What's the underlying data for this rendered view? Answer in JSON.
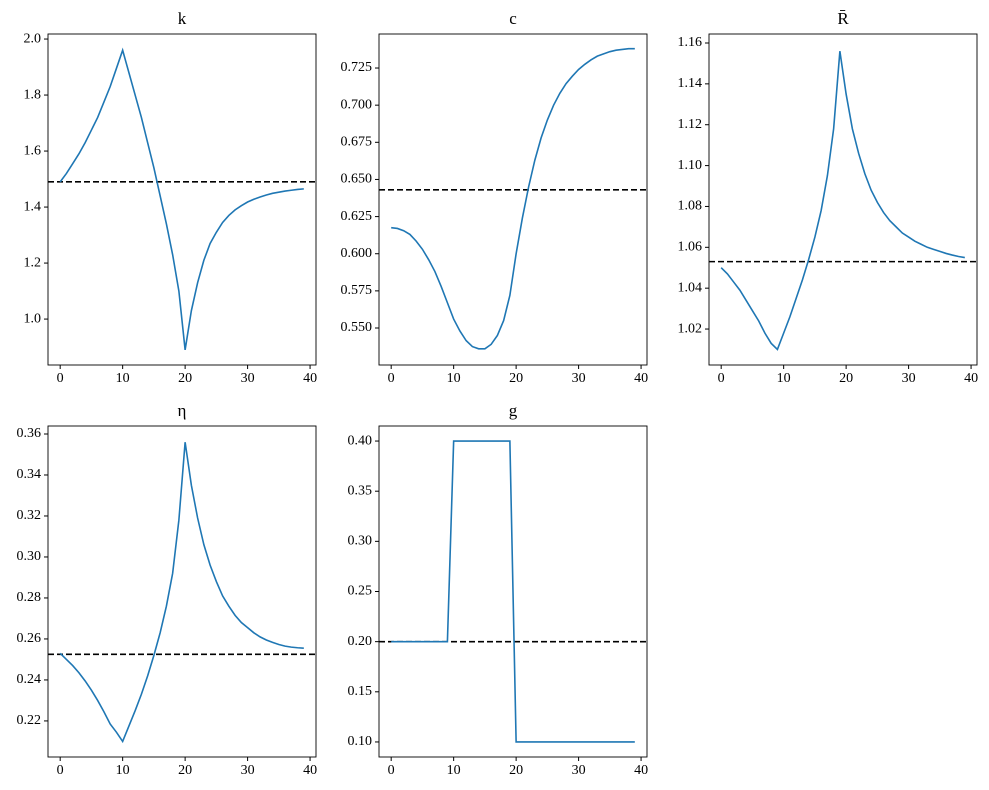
{
  "chart_data": [
    {
      "type": "line",
      "title": "k",
      "x": [
        0,
        1,
        2,
        3,
        4,
        5,
        6,
        7,
        8,
        9,
        10,
        11,
        12,
        13,
        14,
        15,
        16,
        17,
        18,
        19,
        20,
        21,
        22,
        23,
        24,
        25,
        26,
        27,
        28,
        29,
        30,
        31,
        32,
        33,
        34,
        35,
        36,
        37,
        38,
        39
      ],
      "values": [
        1.49,
        1.52,
        1.555,
        1.59,
        1.63,
        1.675,
        1.72,
        1.775,
        1.83,
        1.895,
        1.96,
        1.88,
        1.8,
        1.72,
        1.63,
        1.54,
        1.44,
        1.34,
        1.23,
        1.1,
        0.89,
        1.03,
        1.13,
        1.21,
        1.27,
        1.31,
        1.345,
        1.37,
        1.39,
        1.405,
        1.418,
        1.428,
        1.436,
        1.443,
        1.449,
        1.453,
        1.457,
        1.46,
        1.463,
        1.465
      ],
      "color": "#1f77b4",
      "hline": {
        "value": 1.49,
        "color": "#000000",
        "style": "dashed"
      },
      "xlim": [
        -1.95,
        40.95
      ],
      "xticks": [
        0,
        10,
        20,
        30,
        40
      ],
      "ylim": [
        0.836,
        2.018
      ],
      "yticks": [
        {
          "value": 1.0,
          "label": "1.0"
        },
        1.2,
        1.4,
        1.6,
        1.8,
        {
          "value": 2.0,
          "label": "2.0"
        }
      ]
    },
    {
      "type": "line",
      "title": "c",
      "x": [
        0,
        1,
        2,
        3,
        4,
        5,
        6,
        7,
        8,
        9,
        10,
        11,
        12,
        13,
        14,
        15,
        16,
        17,
        18,
        19,
        20,
        21,
        22,
        23,
        24,
        25,
        26,
        27,
        28,
        29,
        30,
        31,
        32,
        33,
        34,
        35,
        36,
        37,
        38,
        39
      ],
      "values": [
        0.6175,
        0.617,
        0.6155,
        0.613,
        0.6085,
        0.603,
        0.596,
        0.588,
        0.578,
        0.567,
        0.556,
        0.548,
        0.5415,
        0.5375,
        0.536,
        0.536,
        0.539,
        0.545,
        0.555,
        0.572,
        0.6,
        0.624,
        0.645,
        0.663,
        0.678,
        0.69,
        0.7,
        0.708,
        0.7145,
        0.7195,
        0.724,
        0.7275,
        0.7305,
        0.733,
        0.7345,
        0.736,
        0.737,
        0.7375,
        0.738,
        0.738
      ],
      "color": "#1f77b4",
      "hline": {
        "value": 0.643,
        "color": "#000000",
        "style": "dashed"
      },
      "xlim": [
        -1.95,
        40.95
      ],
      "xticks": [
        0,
        10,
        20,
        30,
        40
      ],
      "ylim": [
        0.5251,
        0.7479
      ],
      "yticks": [
        {
          "value": 0.55,
          "label": "0.550"
        },
        0.575,
        {
          "value": 0.6,
          "label": "0.600"
        },
        0.625,
        {
          "value": 0.65,
          "label": "0.650"
        },
        0.675,
        {
          "value": 0.7,
          "label": "0.700"
        },
        0.725
      ]
    },
    {
      "type": "line",
      "title": "R̄",
      "x": [
        0,
        1,
        2,
        3,
        4,
        5,
        6,
        7,
        8,
        9,
        10,
        11,
        12,
        13,
        14,
        15,
        16,
        17,
        18,
        19,
        20,
        21,
        22,
        23,
        24,
        25,
        26,
        27,
        28,
        29,
        30,
        31,
        32,
        33,
        34,
        35,
        36,
        37,
        38,
        39
      ],
      "values": [
        1.05,
        1.047,
        1.043,
        1.039,
        1.034,
        1.029,
        1.024,
        1.018,
        1.013,
        1.01,
        1.018,
        1.026,
        1.035,
        1.044,
        1.054,
        1.065,
        1.078,
        1.095,
        1.118,
        1.156,
        1.135,
        1.118,
        1.106,
        1.096,
        1.088,
        1.082,
        1.077,
        1.073,
        1.07,
        1.067,
        1.065,
        1.063,
        1.0615,
        1.06,
        1.059,
        1.058,
        1.057,
        1.0562,
        1.0555,
        1.055
      ],
      "color": "#1f77b4",
      "hline": {
        "value": 1.053,
        "color": "#000000",
        "style": "dashed"
      },
      "xlim": [
        -1.95,
        40.95
      ],
      "xticks": [
        0,
        10,
        20,
        30,
        40
      ],
      "ylim": [
        1.0024,
        1.1644
      ],
      "yticks": [
        1.02,
        1.04,
        1.06,
        1.08,
        {
          "value": 1.1,
          "label": "1.10"
        },
        1.12,
        1.14,
        1.16
      ]
    },
    {
      "type": "line",
      "title": "η",
      "x": [
        0,
        1,
        2,
        3,
        4,
        5,
        6,
        7,
        8,
        9,
        10,
        11,
        12,
        13,
        14,
        15,
        16,
        17,
        18,
        19,
        20,
        21,
        22,
        23,
        24,
        25,
        26,
        27,
        28,
        29,
        30,
        31,
        32,
        33,
        34,
        35,
        36,
        37,
        38,
        39
      ],
      "values": [
        0.253,
        0.25,
        0.247,
        0.2435,
        0.2395,
        0.235,
        0.23,
        0.2245,
        0.2185,
        0.2145,
        0.21,
        0.2175,
        0.225,
        0.233,
        0.242,
        0.252,
        0.263,
        0.276,
        0.292,
        0.318,
        0.356,
        0.335,
        0.319,
        0.306,
        0.296,
        0.288,
        0.281,
        0.276,
        0.2715,
        0.268,
        0.2655,
        0.263,
        0.261,
        0.2595,
        0.2583,
        0.2573,
        0.2565,
        0.256,
        0.2557,
        0.2555
      ],
      "color": "#1f77b4",
      "hline": {
        "value": 0.2525,
        "color": "#000000",
        "style": "dashed"
      },
      "xlim": [
        -1.95,
        40.95
      ],
      "xticks": [
        0,
        10,
        20,
        30,
        40
      ],
      "ylim": [
        0.2024,
        0.3639
      ],
      "yticks": [
        0.22,
        0.24,
        0.26,
        0.28,
        {
          "value": 0.3,
          "label": "0.30"
        },
        0.32,
        0.34,
        0.36
      ]
    },
    {
      "type": "line",
      "title": "g",
      "x": [
        0,
        1,
        2,
        3,
        4,
        5,
        6,
        7,
        8,
        9,
        10,
        11,
        12,
        13,
        14,
        15,
        16,
        17,
        18,
        19,
        20,
        21,
        22,
        23,
        24,
        25,
        26,
        27,
        28,
        29,
        30,
        31,
        32,
        33,
        34,
        35,
        36,
        37,
        38,
        39
      ],
      "values": [
        0.2,
        0.2,
        0.2,
        0.2,
        0.2,
        0.2,
        0.2,
        0.2,
        0.2,
        0.2,
        0.4,
        0.4,
        0.4,
        0.4,
        0.4,
        0.4,
        0.4,
        0.4,
        0.4,
        0.4,
        0.1,
        0.1,
        0.1,
        0.1,
        0.1,
        0.1,
        0.1,
        0.1,
        0.1,
        0.1,
        0.1,
        0.1,
        0.1,
        0.1,
        0.1,
        0.1,
        0.1,
        0.1,
        0.1,
        0.1
      ],
      "color": "#1f77b4",
      "hline": {
        "value": 0.2,
        "color": "#000000",
        "style": "dashed"
      },
      "xlim": [
        -1.95,
        40.95
      ],
      "xticks": [
        0,
        10,
        20,
        30,
        40
      ],
      "ylim": [
        0.085,
        0.415
      ],
      "yticks": [
        {
          "value": 0.1,
          "label": "0.10"
        },
        0.15,
        {
          "value": 0.2,
          "label": "0.20"
        },
        0.25,
        {
          "value": 0.3,
          "label": "0.30"
        },
        0.35,
        {
          "value": 0.4,
          "label": "0.40"
        }
      ]
    }
  ]
}
